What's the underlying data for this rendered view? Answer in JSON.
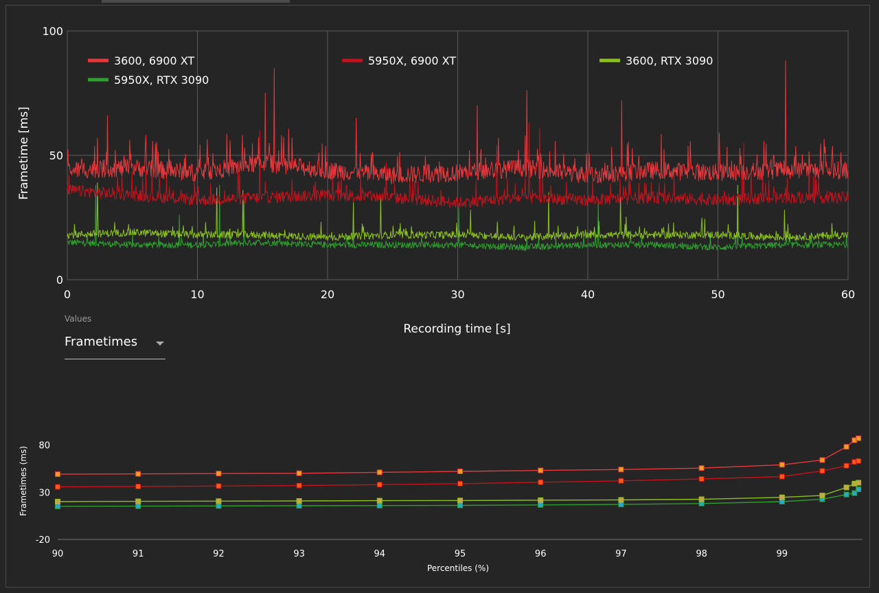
{
  "controls": {
    "values_label": "Values",
    "values_selected": "Frametimes"
  },
  "colors": {
    "background": "#252526",
    "grid": "#5a5a5a",
    "series_3600_6900xt": "#e8383d",
    "series_5950x_6900xt": "#c4121c",
    "series_3600_rtx3090": "#8cc21c",
    "series_5950x_rtx3090": "#2e9e2e"
  },
  "chart_data": [
    {
      "type": "line",
      "xlabel": "Recording time [s]",
      "ylabel": "Frametime [ms]",
      "xlim": [
        0,
        60
      ],
      "ylim": [
        0,
        100
      ],
      "x_ticks": [
        "0",
        "10",
        "20",
        "30",
        "40",
        "50",
        "60"
      ],
      "y_ticks": [
        "0",
        "50",
        "100"
      ],
      "grid": true,
      "legend_position": "top",
      "series": [
        {
          "name": "3600, 6900 XT",
          "color": "#e8383d",
          "baseline": [
            [
              0,
              44
            ],
            [
              5,
              45
            ],
            [
              10,
              43
            ],
            [
              15,
              47
            ],
            [
              20,
              44
            ],
            [
              25,
              42
            ],
            [
              30,
              43
            ],
            [
              35,
              45
            ],
            [
              40,
              42
            ],
            [
              45,
              44
            ],
            [
              50,
              43
            ],
            [
              55,
              44
            ],
            [
              60,
              44
            ]
          ],
          "spikes": [
            [
              2.3,
              57
            ],
            [
              3.1,
              66
            ],
            [
              15.2,
              75
            ],
            [
              15.9,
              85
            ],
            [
              22.2,
              65
            ],
            [
              31.5,
              70
            ],
            [
              35.3,
              76
            ],
            [
              42.6,
              72
            ],
            [
              55.2,
              88
            ],
            [
              50.1,
              59
            ]
          ]
        },
        {
          "name": "5950X, 6900 XT",
          "color": "#c4121c",
          "baseline": [
            [
              0,
              36
            ],
            [
              5,
              34
            ],
            [
              10,
              32
            ],
            [
              15,
              33
            ],
            [
              20,
              34
            ],
            [
              25,
              33
            ],
            [
              30,
              31
            ],
            [
              35,
              33
            ],
            [
              40,
              32
            ],
            [
              45,
              33
            ],
            [
              50,
              32
            ],
            [
              55,
              33
            ],
            [
              60,
              33
            ]
          ],
          "spikes": [
            [
              14.8,
              60
            ],
            [
              24.5,
              47
            ],
            [
              33.0,
              54
            ],
            [
              35.5,
              63
            ],
            [
              36.3,
              61
            ],
            [
              52.0,
              55
            ],
            [
              57.0,
              49
            ]
          ]
        },
        {
          "name": "3600, RTX 3090",
          "color": "#8cc21c",
          "baseline": [
            [
              0,
              18
            ],
            [
              5,
              19
            ],
            [
              10,
              18
            ],
            [
              15,
              18
            ],
            [
              20,
              17
            ],
            [
              25,
              18
            ],
            [
              30,
              18
            ],
            [
              35,
              17
            ],
            [
              40,
              18
            ],
            [
              45,
              18
            ],
            [
              50,
              18
            ],
            [
              55,
              17
            ],
            [
              60,
              18
            ]
          ],
          "spikes": [
            [
              2.3,
              39
            ],
            [
              11.5,
              37
            ],
            [
              13.5,
              36
            ],
            [
              22.0,
              31
            ],
            [
              24.1,
              33
            ],
            [
              31.0,
              28
            ],
            [
              37.0,
              35
            ],
            [
              42.5,
              33
            ],
            [
              51.5,
              38
            ],
            [
              55.1,
              28
            ]
          ]
        },
        {
          "name": "5950X, RTX 3090",
          "color": "#2e9e2e",
          "baseline": [
            [
              0,
              15
            ],
            [
              5,
              14
            ],
            [
              10,
              14
            ],
            [
              15,
              15
            ],
            [
              20,
              14
            ],
            [
              25,
              14
            ],
            [
              30,
              14
            ],
            [
              35,
              13
            ],
            [
              40,
              14
            ],
            [
              45,
              14
            ],
            [
              50,
              13
            ],
            [
              55,
              14
            ],
            [
              60,
              14
            ]
          ],
          "spikes": [
            [
              2.2,
              38
            ],
            [
              8.6,
              26
            ],
            [
              11.7,
              38
            ],
            [
              13.6,
              32
            ],
            [
              22.0,
              30
            ],
            [
              30.1,
              29
            ],
            [
              40.8,
              31
            ],
            [
              51.5,
              36
            ]
          ]
        }
      ]
    },
    {
      "type": "line",
      "xlabel": "Percentiles (%)",
      "ylabel": "Frametimes (ms)",
      "xlim": [
        90,
        100
      ],
      "ylim": [
        -20,
        100
      ],
      "x_ticks": [
        "90",
        "91",
        "92",
        "93",
        "94",
        "95",
        "96",
        "97",
        "98",
        "99"
      ],
      "y_ticks": [
        "-20",
        "30",
        "80"
      ],
      "grid": false,
      "x": [
        90,
        91,
        92,
        93,
        94,
        95,
        96,
        97,
        98,
        99,
        99.5,
        99.8,
        99.9,
        99.95
      ],
      "series": [
        {
          "name": "3600, 6900 XT",
          "color": "#e8383d",
          "marker_color": "#f0a020",
          "values": [
            49,
            49.3,
            49.7,
            50,
            51,
            52,
            53,
            54,
            55.5,
            59,
            64,
            78,
            85,
            87
          ]
        },
        {
          "name": "5950X, 6900 XT",
          "color": "#c4121c",
          "marker_color": "#ff5a10",
          "values": [
            35.6,
            36,
            36.5,
            37,
            38,
            39,
            40.5,
            42,
            44,
            46.5,
            52.5,
            58,
            62,
            63
          ]
        },
        {
          "name": "3600, RTX 3090",
          "color": "#8cc21c",
          "marker_color": "#c9a44a",
          "values": [
            20,
            20.3,
            20.5,
            20.7,
            21,
            21.2,
            21.5,
            21.8,
            22.5,
            24.5,
            26.5,
            35,
            39,
            40
          ]
        },
        {
          "name": "5950X, RTX 3090",
          "color": "#2e9e2e",
          "marker_color": "#2aa8c8",
          "values": [
            15,
            15.2,
            15.4,
            15.6,
            15.8,
            16,
            16.5,
            17,
            18,
            20,
            22.5,
            27.5,
            29,
            33
          ]
        }
      ]
    }
  ]
}
